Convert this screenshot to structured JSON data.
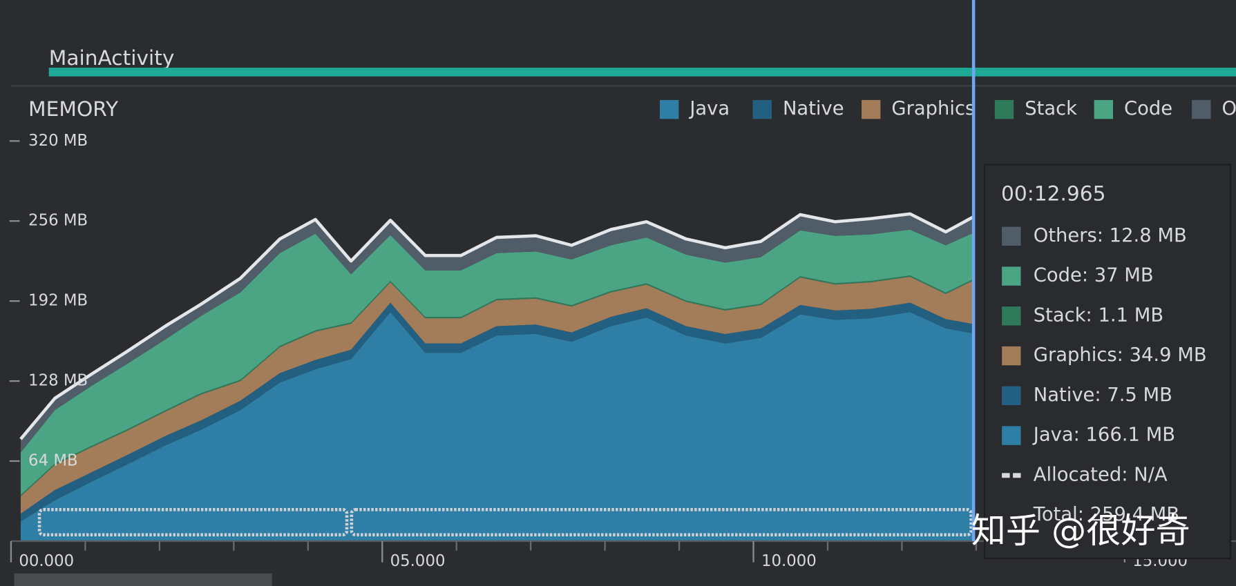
{
  "activity_label": "MainActivity",
  "chart_data": {
    "type": "stacked-area",
    "title": "MEMORY",
    "x": [
      0.13,
      0.59,
      1.07,
      1.55,
      2.08,
      2.56,
      3.09,
      3.62,
      4.1,
      4.58,
      5.11,
      5.58,
      6.06,
      6.54,
      7.07,
      7.55,
      8.08,
      8.56,
      9.09,
      9.62,
      10.1,
      10.63,
      11.1,
      11.58,
      12.11,
      12.59,
      12.965
    ],
    "series": [
      {
        "name": "Java",
        "color": "#2e7ea6",
        "values": [
          15.7,
          32.6,
          47.1,
          60.9,
          76.6,
          89.1,
          104.8,
          126.8,
          137.4,
          145.6,
          183.2,
          150.6,
          150.6,
          164.4,
          165.7,
          159.4,
          171.9,
          178.8,
          164.4,
          158.1,
          162.5,
          181.3,
          177.0,
          178.2,
          183.2,
          170.1,
          166.1
        ]
      },
      {
        "name": "Native",
        "color": "#235f80",
        "values": [
          6.3,
          8.2,
          7.5,
          7.5,
          7.5,
          7.5,
          7.5,
          7.5,
          7.5,
          7.5,
          7.5,
          7.5,
          7.5,
          7.5,
          7.5,
          7.5,
          7.5,
          7.5,
          7.5,
          7.5,
          7.5,
          7.5,
          7.5,
          7.5,
          7.5,
          7.5,
          7.5
        ]
      },
      {
        "name": "Graphics",
        "color": "#a37d5a",
        "values": [
          13.8,
          20.1,
          20.1,
          19.5,
          19.5,
          20.7,
          15.7,
          20.7,
          22.6,
          20.7,
          16.3,
          20.1,
          20.1,
          20.7,
          20.7,
          20.7,
          19.5,
          18.8,
          19.5,
          18.8,
          18.8,
          22.0,
          20.7,
          21.3,
          20.7,
          20.1,
          34.9
        ]
      },
      {
        "name": "Stack",
        "color": "#2e7a5a",
        "values": [
          1.1,
          1.1,
          1.1,
          1.1,
          1.1,
          1.1,
          1.1,
          1.1,
          1.1,
          1.1,
          1.1,
          1.1,
          1.1,
          1.1,
          1.1,
          1.1,
          1.1,
          1.1,
          1.1,
          1.1,
          1.1,
          1.1,
          1.1,
          1.1,
          1.1,
          1.1,
          1.1
        ]
      },
      {
        "name": "Code",
        "color": "#4ba585",
        "values": [
          34.0,
          42.8,
          47.8,
          52.2,
          56.6,
          61.7,
          69.8,
          74.2,
          77.3,
          38.4,
          36.6,
          37.2,
          37.2,
          36.6,
          36.6,
          36.6,
          36.6,
          36.6,
          36.6,
          37.2,
          37.2,
          36.6,
          37.8,
          37.2,
          36.6,
          37.8,
          37
        ]
      },
      {
        "name": "Others",
        "color": "#505d68",
        "values": [
          10.7,
          9.4,
          9.4,
          10.0,
          10.7,
          9.4,
          11.3,
          11.3,
          11.3,
          10.7,
          11.9,
          11.9,
          11.9,
          12.6,
          12.6,
          11.3,
          12.6,
          12.6,
          12.6,
          11.9,
          12.6,
          12.6,
          11.3,
          12.6,
          12.6,
          10.7,
          12.8
        ]
      }
    ],
    "xlim": [
      0,
      16.5
    ],
    "xticks": [
      {
        "value": 0,
        "label": "00.000"
      },
      {
        "value": 5,
        "label": "05.000"
      },
      {
        "value": 10,
        "label": "10.000"
      },
      {
        "value": 15,
        "label": "15.000"
      }
    ],
    "minor_xticks": [
      1,
      2,
      3,
      4,
      6,
      7,
      8,
      9,
      11,
      12,
      13,
      14,
      16
    ],
    "ylim": [
      0,
      320
    ],
    "yticks": [
      {
        "value": 64,
        "label": "64 MB"
      },
      {
        "value": 128,
        "label": "128 MB"
      },
      {
        "value": 192,
        "label": "192 MB"
      },
      {
        "value": 256,
        "label": "256 MB"
      },
      {
        "value": 320,
        "label": "320 MB"
      }
    ],
    "cursor_x": 12.965,
    "tooltip": {
      "time": "00:12.965",
      "entries": [
        "Others: 12.8 MB",
        "Code: 37 MB",
        "Stack: 1.1 MB",
        "Graphics: 34.9 MB",
        "Native: 7.5 MB",
        "Java: 166.1 MB",
        "Allocated: N/A",
        "Total: 259.4 MB"
      ]
    }
  },
  "watermark": "知乎 @很好奇"
}
